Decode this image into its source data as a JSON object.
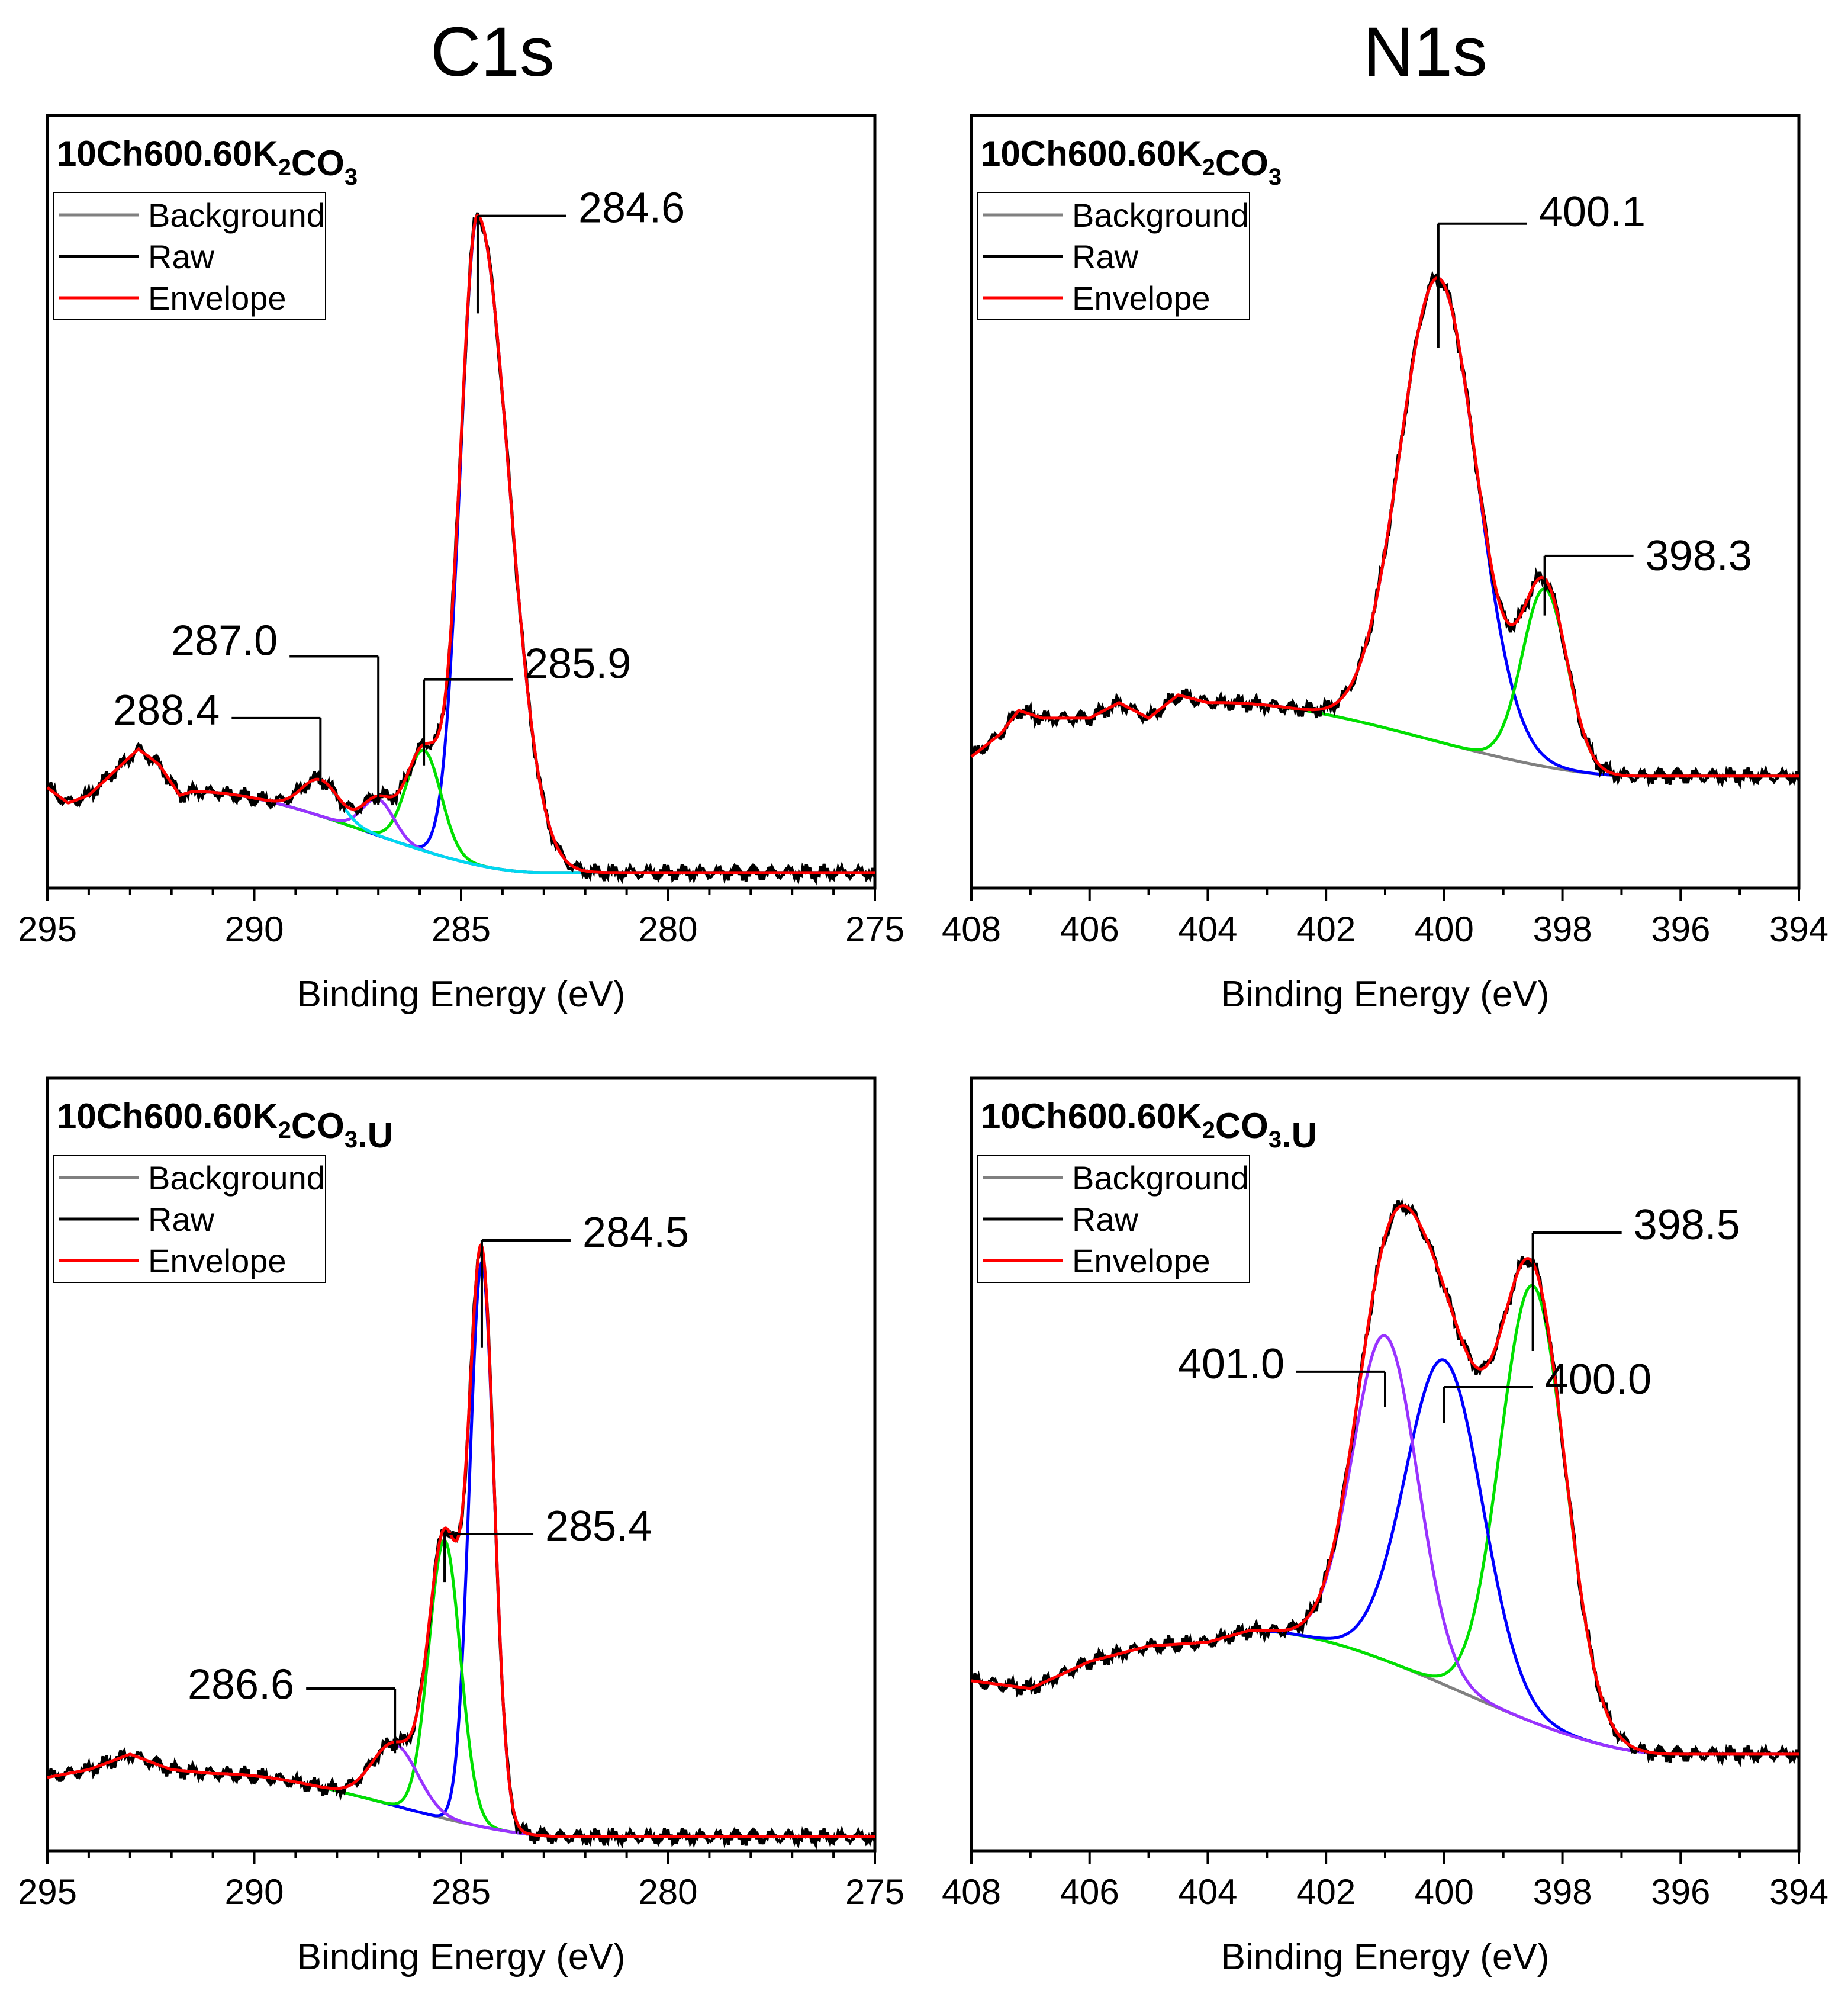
{
  "figure": {
    "column_titles": [
      "C1s",
      "N1s"
    ],
    "legend": [
      "Background",
      "Raw",
      "Envelope"
    ],
    "colors": {
      "background": "#808080",
      "raw": "#000000",
      "envelope": "#ff0000",
      "blue": "#0000ff",
      "green": "#00e000",
      "purple": "#9933ff",
      "cyan": "#00d8f0"
    }
  },
  "chart_data": [
    {
      "type": "line",
      "region": "C1s",
      "title_main": "10Ch600.60K",
      "title_sub1": "2",
      "title_mid": "CO",
      "title_sub2": "3",
      "title_suffix": "",
      "xlabel": "Binding Energy (eV)",
      "xlim": [
        295,
        275
      ],
      "xticks": [
        295,
        290,
        285,
        280,
        275
      ],
      "x_minor_step": 1,
      "ylim": [
        0,
        1
      ],
      "background_curve": {
        "start": 291.5,
        "end": 283.0,
        "high": 0.125,
        "low": 0.02
      },
      "raw_extents": {
        "start": 295,
        "end": 275.3
      },
      "baseline_left": [
        [
          295,
          0.13
        ],
        [
          294.5,
          0.11
        ],
        [
          294.0,
          0.12
        ],
        [
          293.4,
          0.15
        ],
        [
          292.8,
          0.18
        ],
        [
          292.3,
          0.16
        ],
        [
          291.8,
          0.12
        ],
        [
          291.5,
          0.125
        ]
      ],
      "tail_right": 0.02,
      "components": [
        {
          "center": 284.6,
          "height": 0.84,
          "sigma": 0.42,
          "skew": 1.8,
          "color": "blue"
        },
        {
          "center": 285.9,
          "height": 0.13,
          "sigma": 0.42,
          "color": "green"
        },
        {
          "center": 287.0,
          "height": 0.047,
          "sigma": 0.38,
          "color": "purple"
        },
        {
          "center": 288.4,
          "height": 0.047,
          "sigma": 0.45,
          "color": "cyan"
        }
      ],
      "labels": [
        {
          "text": "284.6",
          "at": 284.6,
          "y_text": 0.88,
          "y_line": 0.87,
          "side": "right"
        },
        {
          "text": "285.9",
          "at": 285.9,
          "y_text": 0.29,
          "y_line": 0.27,
          "side": "right"
        },
        {
          "text": "287.0",
          "at": 287.0,
          "y_text": 0.32,
          "y_line": 0.3,
          "side": "left"
        },
        {
          "text": "288.4",
          "at": 288.4,
          "y_text": 0.23,
          "y_line": 0.22,
          "side": "left"
        }
      ]
    },
    {
      "type": "line",
      "region": "N1s",
      "title_main": "10Ch600.60K",
      "title_sub1": "2",
      "title_mid": "CO",
      "title_sub2": "3",
      "title_suffix": "",
      "xlabel": "Binding Energy (eV)",
      "xlim": [
        408,
        394
      ],
      "xticks": [
        408,
        406,
        404,
        402,
        400,
        398,
        396,
        394
      ],
      "x_minor_step": 1,
      "ylim": [
        0,
        1
      ],
      "background_curve": {
        "start": 403.8,
        "end": 396.7,
        "high": 0.24,
        "low": 0.145
      },
      "raw_extents": {
        "start": 408,
        "end": 394
      },
      "baseline_left": [
        [
          408,
          0.17
        ],
        [
          407.5,
          0.2
        ],
        [
          407.2,
          0.23
        ],
        [
          406.8,
          0.22
        ],
        [
          406.0,
          0.22
        ],
        [
          405.5,
          0.24
        ],
        [
          405.0,
          0.22
        ],
        [
          404.5,
          0.25
        ],
        [
          404.0,
          0.24
        ],
        [
          403.8,
          0.24
        ]
      ],
      "tail_right": 0.145,
      "components": [
        {
          "center": 400.1,
          "height": 0.6,
          "sigma": 0.65,
          "color": "blue"
        },
        {
          "center": 398.3,
          "height": 0.23,
          "sigma": 0.38,
          "color": "green"
        }
      ],
      "labels": [
        {
          "text": "400.1",
          "at": 400.1,
          "y_text": 0.875,
          "y_line": 0.86,
          "side": "right"
        },
        {
          "text": "398.3",
          "at": 398.3,
          "y_text": 0.43,
          "y_line": 0.43,
          "side": "right"
        }
      ]
    },
    {
      "type": "line",
      "region": "C1s",
      "title_main": "10Ch600.60K",
      "title_sub1": "2",
      "title_mid": "CO",
      "title_sub2": "3",
      "title_suffix": ".U",
      "xlabel": "Binding Energy (eV)",
      "xlim": [
        295,
        275
      ],
      "xticks": [
        295,
        290,
        285,
        280,
        275
      ],
      "x_minor_step": 1,
      "ylim": [
        0,
        1
      ],
      "background_curve": {
        "start": 291.0,
        "end": 282.3,
        "high": 0.1,
        "low": 0.018
      },
      "raw_extents": {
        "start": 295,
        "end": 275.3
      },
      "baseline_left": [
        [
          295,
          0.095
        ],
        [
          294.0,
          0.105
        ],
        [
          293.0,
          0.125
        ],
        [
          292.5,
          0.115
        ],
        [
          292.0,
          0.105
        ],
        [
          291.0,
          0.1
        ]
      ],
      "tail_right": 0.018,
      "components": [
        {
          "center": 284.5,
          "height": 0.73,
          "sigma": 0.3,
          "color": "blue"
        },
        {
          "center": 285.4,
          "height": 0.36,
          "sigma": 0.38,
          "color": "green"
        },
        {
          "center": 286.6,
          "height": 0.08,
          "sigma": 0.55,
          "color": "purple"
        }
      ],
      "labels": [
        {
          "text": "284.5",
          "at": 284.5,
          "y_text": 0.8,
          "y_line": 0.79,
          "side": "right"
        },
        {
          "text": "285.4",
          "at": 285.4,
          "y_text": 0.42,
          "y_line": 0.41,
          "side": "right"
        },
        {
          "text": "286.6",
          "at": 286.6,
          "y_text": 0.215,
          "y_line": 0.21,
          "side": "left"
        }
      ]
    },
    {
      "type": "line",
      "region": "N1s",
      "title_main": "10Ch600.60K",
      "title_sub1": "2",
      "title_mid": "CO",
      "title_sub2": "3",
      "title_suffix": ".U",
      "xlabel": "Binding Energy (eV)",
      "xlim": [
        408,
        394
      ],
      "xticks": [
        408,
        406,
        404,
        402,
        400,
        398,
        396,
        394
      ],
      "x_minor_step": 1,
      "ylim": [
        0,
        1
      ],
      "background_curve": {
        "start": 403.3,
        "end": 396.1,
        "high": 0.285,
        "low": 0.125
      },
      "raw_extents": {
        "start": 408,
        "end": 394
      },
      "baseline_left": [
        [
          408,
          0.22
        ],
        [
          407.0,
          0.21
        ],
        [
          406.0,
          0.245
        ],
        [
          405.0,
          0.265
        ],
        [
          404.0,
          0.27
        ],
        [
          403.3,
          0.285
        ]
      ],
      "tail_right": 0.125,
      "components": [
        {
          "center": 398.5,
          "height": 0.565,
          "sigma": 0.55,
          "color": "green"
        },
        {
          "center": 400.0,
          "height": 0.42,
          "sigma": 0.65,
          "color": "blue"
        },
        {
          "center": 401.0,
          "height": 0.42,
          "sigma": 0.55,
          "color": "purple"
        }
      ],
      "labels": [
        {
          "text": "398.5",
          "at": 398.5,
          "y_text": 0.81,
          "y_line": 0.8,
          "side": "right"
        },
        {
          "text": "400.0",
          "at": 400.0,
          "y_text": 0.61,
          "y_line": 0.6,
          "side": "right"
        },
        {
          "text": "401.0",
          "at": 401.0,
          "y_text": 0.63,
          "y_line": 0.62,
          "side": "left"
        }
      ]
    }
  ]
}
